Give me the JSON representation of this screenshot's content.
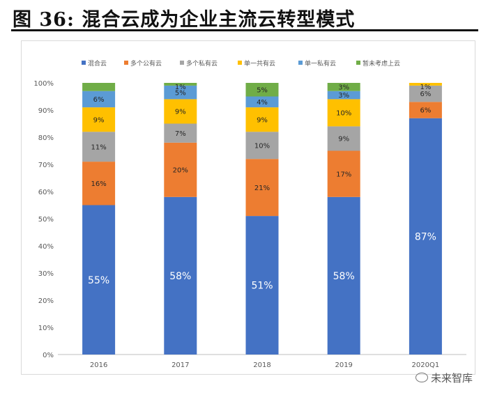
{
  "figure": {
    "title": "图  36:  混合云成为企业主流云转型模式",
    "watermark": "未来智库",
    "watermark_icon": "wechat-icon"
  },
  "chart_data": {
    "type": "bar",
    "stacked": true,
    "categories": [
      "2016",
      "2017",
      "2018",
      "2019",
      "2020Q1"
    ],
    "series": [
      {
        "name": "混合云",
        "color": "#4472C4",
        "values": [
          55,
          58,
          51,
          58,
          87
        ]
      },
      {
        "name": "多个公有云",
        "color": "#ED7D31",
        "values": [
          16,
          20,
          21,
          17,
          6
        ]
      },
      {
        "name": "多个私有云",
        "color": "#A5A5A5",
        "values": [
          11,
          7,
          10,
          9,
          6
        ]
      },
      {
        "name": "单一共有云",
        "color": "#FFC000",
        "values": [
          9,
          9,
          9,
          10,
          1
        ]
      },
      {
        "name": "单一私有云",
        "color": "#5B9BD5",
        "values": [
          6,
          5,
          4,
          3,
          0
        ]
      },
      {
        "name": "暂未考虑上云",
        "color": "#70AD47",
        "values": [
          3,
          1,
          5,
          3,
          0
        ]
      }
    ],
    "data_labels": [
      [
        "55%",
        "58%",
        "51%",
        "58%",
        "87%"
      ],
      [
        "16%",
        "20%",
        "21%",
        "17%",
        "6%"
      ],
      [
        "11%",
        "7%",
        "10%",
        "9%",
        "6%"
      ],
      [
        "9%",
        "9%",
        "9%",
        "10%",
        "1%"
      ],
      [
        "6%",
        "5%",
        "4%",
        "3%",
        ""
      ],
      [
        "",
        "1%",
        "5%",
        "3%",
        ""
      ]
    ],
    "y_ticks": [
      "0%",
      "10%",
      "20%",
      "30%",
      "40%",
      "50%",
      "60%",
      "70%",
      "80%",
      "90%",
      "100%"
    ],
    "ylim": [
      0,
      100
    ],
    "legend_position": "top",
    "grid": false
  }
}
